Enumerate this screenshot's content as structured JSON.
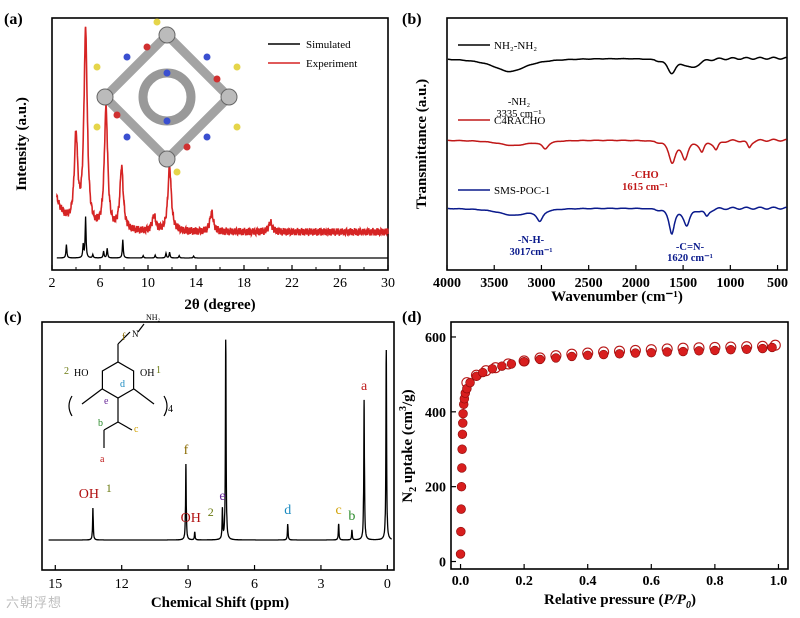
{
  "watermark": "六朝浮想",
  "chart_data": [
    {
      "panel": "(a)",
      "type": "line",
      "xlabel": "2θ (degree)",
      "ylabel": "Intensity (a.u.)",
      "xlim": [
        2,
        30
      ],
      "xticks": [
        2,
        6,
        10,
        14,
        18,
        22,
        26,
        30
      ],
      "legend": {
        "position": "top-right",
        "entries": [
          "Simulated",
          "Experiment"
        ]
      },
      "colors": {
        "Simulated": "#000000",
        "Experiment": "#d62424"
      },
      "series": [
        {
          "name": "Simulated",
          "peaks": [
            [
              3.2,
              0.28
            ],
            [
              4.6,
              0.27
            ],
            [
              4.8,
              0.85
            ],
            [
              5.4,
              0.07
            ],
            [
              6.3,
              0.14
            ],
            [
              6.6,
              0.2
            ],
            [
              7.9,
              0.38
            ],
            [
              9.6,
              0.05
            ],
            [
              10.6,
              0.06
            ],
            [
              11.5,
              0.1
            ],
            [
              11.8,
              0.12
            ],
            [
              12.6,
              0.05
            ],
            [
              13.8,
              0.04
            ]
          ]
        },
        {
          "name": "Experiment",
          "peaks": [
            [
              4.0,
              0.45
            ],
            [
              4.8,
              1.0
            ],
            [
              6.5,
              0.62
            ],
            [
              7.8,
              0.32
            ],
            [
              10.5,
              0.08
            ],
            [
              11.8,
              0.33
            ],
            [
              15.3,
              0.1
            ],
            [
              20.2,
              0.05
            ]
          ]
        }
      ],
      "inset": "molecular cage structure"
    },
    {
      "panel": "(b)",
      "type": "line",
      "xlabel": "Wavenumber (cm⁻¹)",
      "ylabel": "Transmittance (a.u.)",
      "xlim": [
        4000,
        400
      ],
      "xticks": [
        4000,
        3500,
        3000,
        2500,
        2000,
        1500,
        1000,
        500
      ],
      "series": [
        {
          "name": "NH₂-NH₂",
          "color": "#000000",
          "bands": [
            [
              3335,
              0.45
            ],
            [
              1620,
              0.45
            ],
            [
              1400,
              0.3
            ]
          ]
        },
        {
          "name": "C4RACHO",
          "color": "#c01818",
          "bands": [
            [
              3300,
              0.18
            ],
            [
              2960,
              0.25
            ],
            [
              1615,
              0.7
            ],
            [
              1480,
              0.55
            ],
            [
              1300,
              0.35
            ],
            [
              1150,
              0.3
            ],
            [
              800,
              0.25
            ]
          ]
        },
        {
          "name": "SMS-POC-1",
          "color": "#0a1a8c",
          "bands": [
            [
              3300,
              0.22
            ],
            [
              3017,
              0.35
            ],
            [
              1620,
              0.75
            ],
            [
              1460,
              0.5
            ],
            [
              1250,
              0.25
            ]
          ]
        }
      ],
      "annotations": [
        {
          "label": "-NH₂",
          "value": "3335 cm⁻¹"
        },
        {
          "label": "-CHO",
          "value": "1615 cm⁻¹"
        },
        {
          "label": "-N-H-",
          "value": "3017cm⁻¹"
        },
        {
          "label": "-C=N-",
          "value": "1620 cm⁻¹"
        }
      ]
    },
    {
      "panel": "(c)",
      "type": "line",
      "xlabel": "Chemical Shift (ppm)",
      "xlim": [
        15,
        0
      ],
      "xticks": [
        15,
        12,
        9,
        6,
        3,
        0
      ],
      "peaks": [
        {
          "label": "OH",
          "sup": "1",
          "ppm": 13.3,
          "h": 0.16
        },
        {
          "label": "f",
          "ppm": 9.1,
          "h": 0.38
        },
        {
          "label": "OH",
          "sup": "2",
          "ppm": 8.7,
          "h": 0.04
        },
        {
          "label": "e",
          "ppm": 7.45,
          "h": 0.15
        },
        {
          "label": "",
          "ppm": 7.3,
          "h": 1.0
        },
        {
          "label": "d",
          "ppm": 4.5,
          "h": 0.08
        },
        {
          "label": "c",
          "ppm": 2.2,
          "h": 0.08
        },
        {
          "label": "b",
          "ppm": 1.6,
          "h": 0.05
        },
        {
          "label": "a",
          "ppm": 1.05,
          "h": 0.7
        },
        {
          "label": "",
          "ppm": 0.05,
          "h": 0.95
        }
      ],
      "structure_labels": [
        "NH₂",
        "N",
        "f",
        "HO",
        "2",
        "OH",
        "1",
        "e",
        "d",
        "4",
        "b",
        "c",
        "a"
      ]
    },
    {
      "panel": "(d)",
      "type": "scatter",
      "xlabel_parts": [
        "Relative pressure (",
        "P/P",
        "0",
        ")"
      ],
      "ylabel_parts": [
        "N",
        "2",
        " uptake (cm",
        "3",
        "/g)"
      ],
      "xlim": [
        -0.03,
        1.03
      ],
      "ylim": [
        -20,
        640
      ],
      "xticks": [
        0.0,
        0.2,
        0.4,
        0.6,
        0.8,
        1.0
      ],
      "yticks": [
        0,
        200,
        400,
        600
      ],
      "series": [
        {
          "name": "adsorption",
          "style": "filled red circle",
          "x": [
            0.0,
            0.001,
            0.002,
            0.003,
            0.004,
            0.005,
            0.006,
            0.007,
            0.008,
            0.01,
            0.012,
            0.015,
            0.02,
            0.03,
            0.05,
            0.07,
            0.1,
            0.13,
            0.16,
            0.2,
            0.25,
            0.3,
            0.35,
            0.4,
            0.45,
            0.5,
            0.55,
            0.6,
            0.65,
            0.7,
            0.75,
            0.8,
            0.85,
            0.9,
            0.95,
            0.98
          ],
          "y": [
            20,
            80,
            140,
            200,
            250,
            300,
            340,
            370,
            395,
            420,
            435,
            450,
            462,
            478,
            495,
            505,
            515,
            522,
            528,
            534,
            540,
            544,
            548,
            551,
            553,
            555,
            557,
            558,
            560,
            561,
            563,
            564,
            566,
            567,
            569,
            572
          ]
        },
        {
          "name": "desorption",
          "style": "open white circle",
          "x": [
            0.02,
            0.05,
            0.08,
            0.11,
            0.15,
            0.2,
            0.25,
            0.3,
            0.35,
            0.4,
            0.45,
            0.5,
            0.55,
            0.6,
            0.65,
            0.7,
            0.75,
            0.8,
            0.85,
            0.9,
            0.95,
            0.99
          ],
          "y": [
            478,
            498,
            510,
            518,
            528,
            536,
            544,
            550,
            554,
            557,
            560,
            562,
            564,
            566,
            568,
            570,
            571,
            572,
            573,
            574,
            575,
            578
          ]
        }
      ]
    }
  ]
}
